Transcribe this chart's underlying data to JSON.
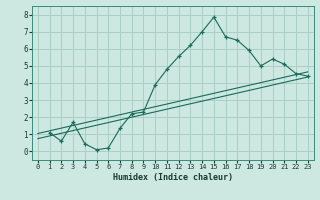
{
  "xlabel": "Humidex (Indice chaleur)",
  "bg_color": "#cce8e0",
  "grid_color": "#aacec6",
  "line_color": "#1a6b5a",
  "xlim": [
    -0.5,
    23.5
  ],
  "ylim": [
    -0.5,
    8.5
  ],
  "xticks": [
    0,
    1,
    2,
    3,
    4,
    5,
    6,
    7,
    8,
    9,
    10,
    11,
    12,
    13,
    14,
    15,
    16,
    17,
    18,
    19,
    20,
    21,
    22,
    23
  ],
  "yticks": [
    0,
    1,
    2,
    3,
    4,
    5,
    6,
    7,
    8
  ],
  "main_x": [
    1,
    2,
    3,
    4,
    5,
    6,
    7,
    8,
    9,
    10,
    11,
    12,
    13,
    14,
    15,
    16,
    17,
    18,
    19,
    20,
    21,
    22,
    23
  ],
  "main_y": [
    1.1,
    0.6,
    1.7,
    0.45,
    0.1,
    0.2,
    1.35,
    2.2,
    2.3,
    3.9,
    4.8,
    5.55,
    6.2,
    7.0,
    7.85,
    6.7,
    6.5,
    5.9,
    5.0,
    5.4,
    5.1,
    4.55,
    4.4
  ],
  "line2_x": [
    0,
    23
  ],
  "line2_y": [
    0.75,
    4.35
  ],
  "line3_x": [
    0,
    23
  ],
  "line3_y": [
    1.05,
    4.65
  ]
}
